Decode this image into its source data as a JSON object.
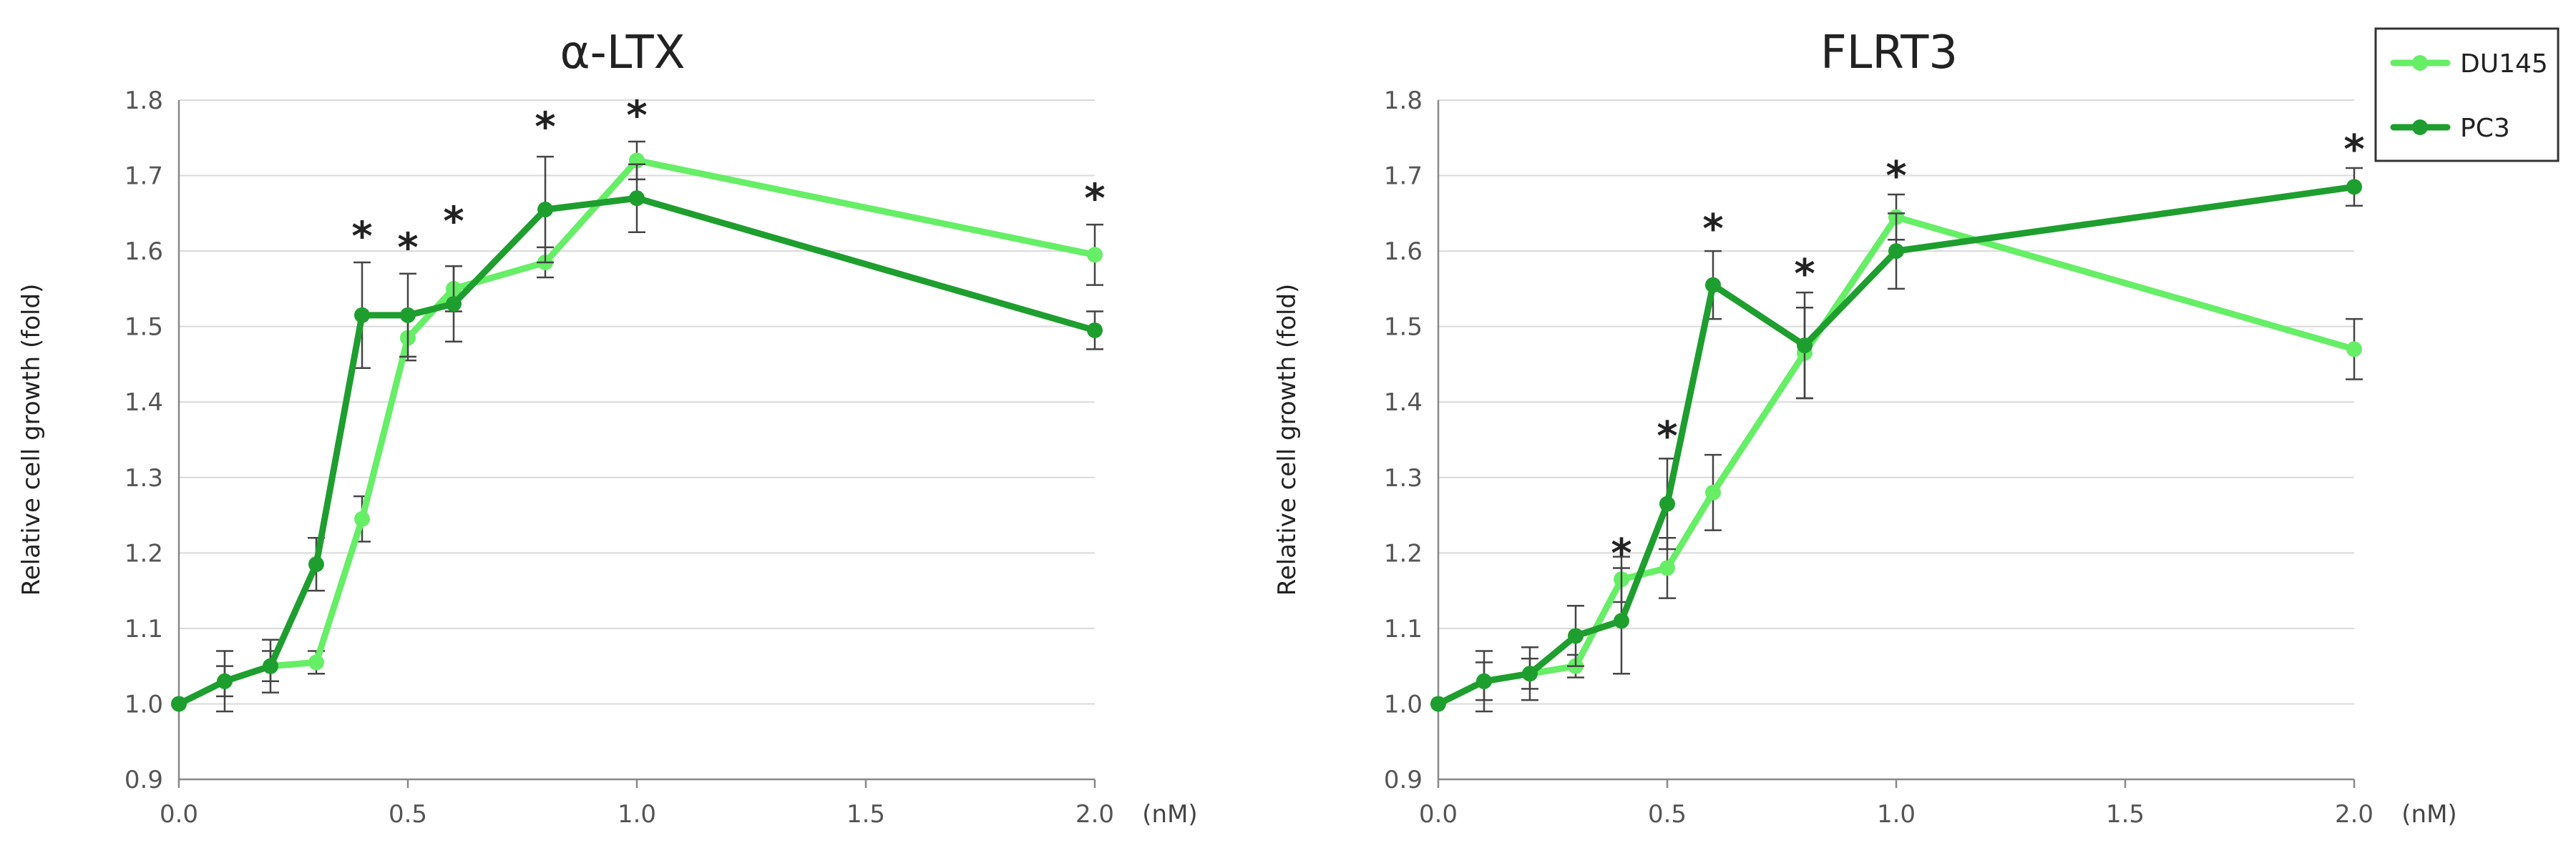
{
  "chart_data": [
    {
      "type": "line",
      "title": "α-LTX",
      "xlabel": "(nM)",
      "ylabel": "Relative cell growth (fold)",
      "xlim": [
        0.0,
        2.0
      ],
      "ylim": [
        0.9,
        1.8
      ],
      "xticks": [
        "0.0",
        "0.5",
        "1.0",
        "1.5",
        "2.0"
      ],
      "yticks": [
        "0.9",
        "1.0",
        "1.1",
        "1.2",
        "1.3",
        "1.4",
        "1.5",
        "1.6",
        "1.7",
        "1.8"
      ],
      "grid": true,
      "x": [
        0.0,
        0.1,
        0.2,
        0.3,
        0.4,
        0.5,
        0.6,
        0.8,
        1.0,
        2.0
      ],
      "series": [
        {
          "name": "DU145",
          "color": "#66ee66",
          "values": [
            1.0,
            1.03,
            1.05,
            1.055,
            1.245,
            1.485,
            1.55,
            1.585,
            1.72,
            1.595
          ],
          "errors": [
            0,
            0.02,
            0.02,
            0.015,
            0.03,
            0.03,
            0.03,
            0.02,
            0.025,
            0.04
          ]
        },
        {
          "name": "PC3",
          "color": "#1e9e2e",
          "values": [
            1.0,
            1.03,
            1.05,
            1.185,
            1.515,
            1.515,
            1.53,
            1.655,
            1.67,
            1.495
          ],
          "errors": [
            0,
            0.04,
            0.035,
            0.035,
            0.07,
            0.055,
            0.05,
            0.07,
            0.045,
            0.025
          ]
        }
      ],
      "annotations": [
        {
          "x": 0.4,
          "y": 1.63,
          "text": "*"
        },
        {
          "x": 0.5,
          "y": 1.615,
          "text": "*"
        },
        {
          "x": 0.6,
          "y": 1.65,
          "text": "*"
        },
        {
          "x": 0.8,
          "y": 1.775,
          "text": "*"
        },
        {
          "x": 1.0,
          "y": 1.79,
          "text": "*"
        },
        {
          "x": 2.0,
          "y": 1.68,
          "text": "*"
        }
      ]
    },
    {
      "type": "line",
      "title": "FLRT3",
      "xlabel": "(nM)",
      "ylabel": "Relative cell growth (fold)",
      "xlim": [
        0.0,
        2.0
      ],
      "ylim": [
        0.9,
        1.8
      ],
      "xticks": [
        "0.0",
        "0.5",
        "1.0",
        "1.5",
        "2.0"
      ],
      "yticks": [
        "0.9",
        "1.0",
        "1.1",
        "1.2",
        "1.3",
        "1.4",
        "1.5",
        "1.6",
        "1.7",
        "1.8"
      ],
      "grid": true,
      "legend_position": "top-right",
      "x": [
        0.0,
        0.1,
        0.2,
        0.3,
        0.4,
        0.5,
        0.6,
        0.8,
        1.0,
        2.0
      ],
      "series": [
        {
          "name": "DU145",
          "color": "#66ee66",
          "values": [
            1.0,
            1.03,
            1.04,
            1.05,
            1.165,
            1.18,
            1.28,
            1.465,
            1.645,
            1.47
          ],
          "errors": [
            0,
            0.025,
            0.02,
            0.015,
            0.03,
            0.04,
            0.05,
            0.06,
            0.03,
            0.04
          ]
        },
        {
          "name": "PC3",
          "color": "#1e9e2e",
          "values": [
            1.0,
            1.03,
            1.04,
            1.09,
            1.11,
            1.265,
            1.555,
            1.475,
            1.6,
            1.685
          ],
          "errors": [
            0,
            0.04,
            0.035,
            0.04,
            0.07,
            0.06,
            0.045,
            0.07,
            0.05,
            0.025
          ]
        }
      ],
      "annotations": [
        {
          "x": 0.4,
          "y": 1.21,
          "text": "*"
        },
        {
          "x": 0.5,
          "y": 1.365,
          "text": "*"
        },
        {
          "x": 0.6,
          "y": 1.64,
          "text": "*"
        },
        {
          "x": 0.8,
          "y": 1.58,
          "text": "*"
        },
        {
          "x": 1.0,
          "y": 1.71,
          "text": "*"
        },
        {
          "x": 2.0,
          "y": 1.745,
          "text": "*"
        }
      ]
    }
  ]
}
